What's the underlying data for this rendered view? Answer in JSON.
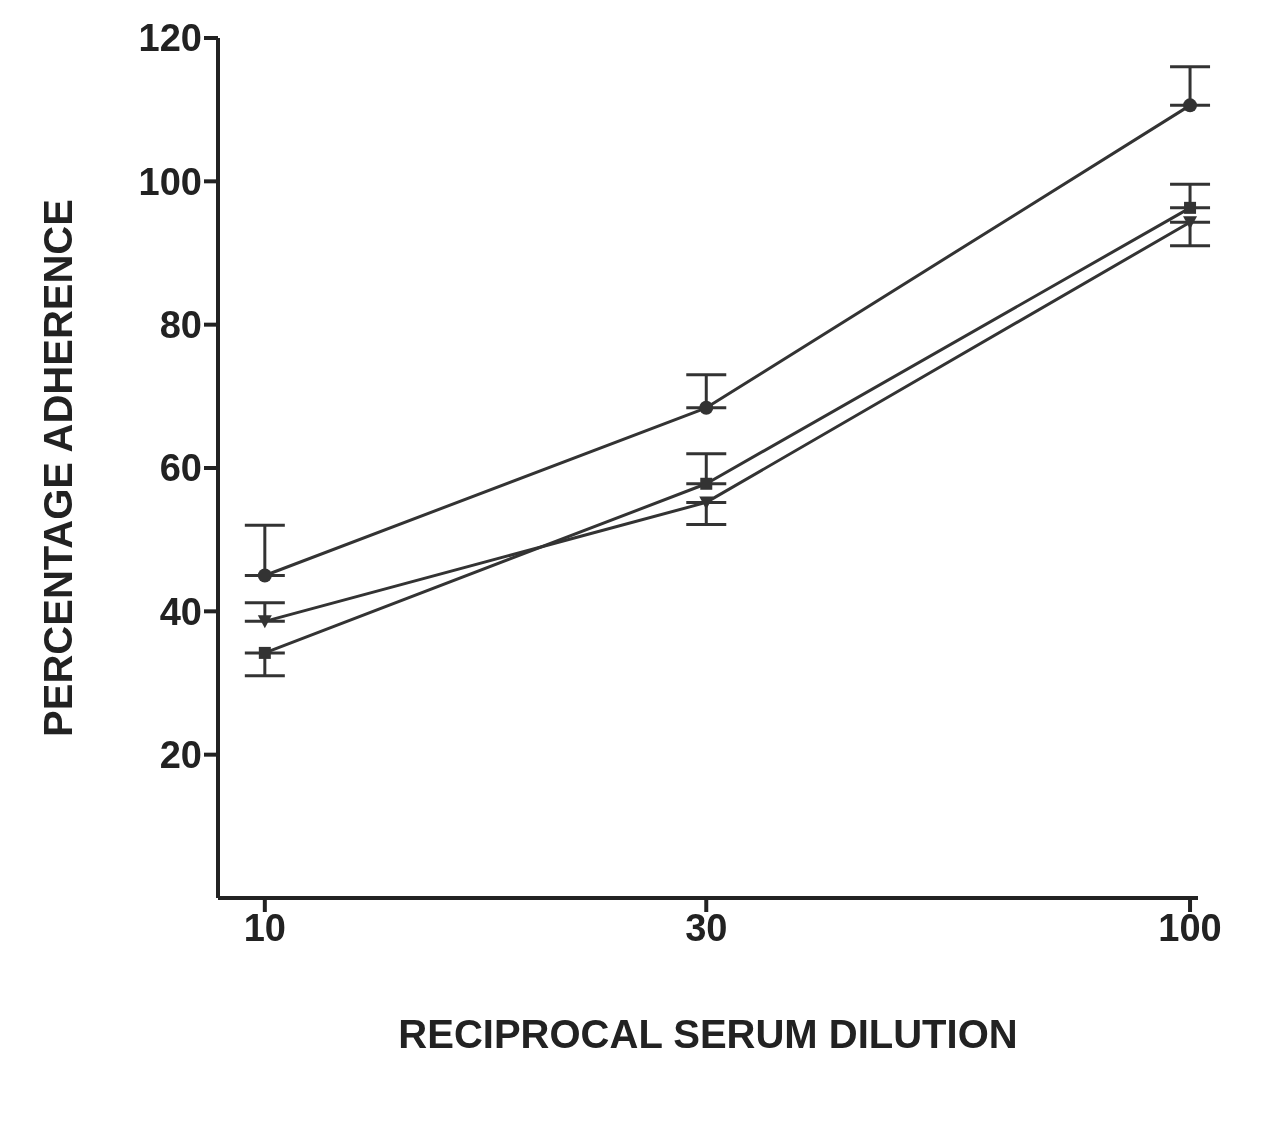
{
  "chart_data": {
    "type": "line",
    "xlabel": "RECIPROCAL   SERUM   DILUTION",
    "ylabel": "PERCENTAGE   ADHERENCE",
    "log": "x",
    "x": [
      10,
      30,
      100
    ],
    "xlim": [
      8.9,
      102
    ],
    "xticks": [
      10,
      30,
      100
    ],
    "ylim": [
      0,
      120
    ],
    "yticks": [
      20,
      40,
      60,
      80,
      100,
      120
    ],
    "line_style": "solid",
    "series": [
      {
        "color": "#333333",
        "marker": "circle",
        "values": [
          45,
          68.4,
          110.6
        ],
        "errors": [
          [
            45,
            52
          ],
          [
            68.4,
            73
          ],
          [
            110.6,
            116
          ]
        ]
      },
      {
        "color": "#333333",
        "marker": "square",
        "values": [
          34.2,
          57.8,
          96.3
        ],
        "errors": [
          [
            31,
            34.2
          ],
          [
            57.8,
            62
          ],
          [
            96.3,
            99.6
          ]
        ]
      },
      {
        "color": "#333333",
        "marker": "triangle",
        "values": [
          38.6,
          55.2,
          94.3
        ],
        "errors": [
          [
            38.6,
            41.2
          ],
          [
            52.1,
            55.2
          ],
          [
            91,
            94.3
          ]
        ]
      }
    ]
  }
}
